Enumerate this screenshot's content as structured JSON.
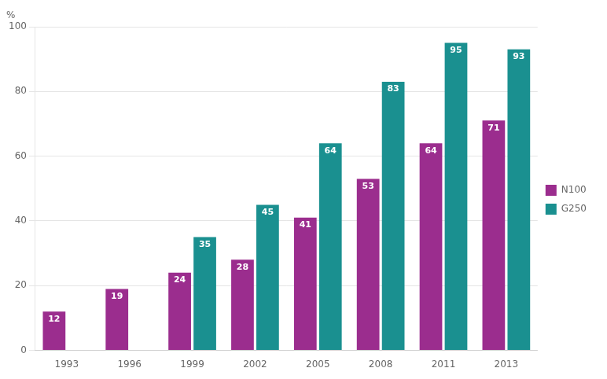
{
  "chart_data": {
    "type": "bar",
    "ylabel": "%",
    "categories": [
      "1993",
      "1996",
      "1999",
      "2002",
      "2005",
      "2008",
      "2011",
      "2013"
    ],
    "series": [
      {
        "name": "N100",
        "color": "#9B2D8E",
        "values": [
          12,
          19,
          24,
          28,
          41,
          53,
          64,
          71
        ]
      },
      {
        "name": "G250",
        "color": "#1A9090",
        "values": [
          null,
          null,
          35,
          45,
          64,
          83,
          95,
          93
        ]
      }
    ],
    "ylim": [
      0,
      100
    ],
    "yticks": [
      0,
      20,
      40,
      60,
      80,
      100
    ],
    "grid": true,
    "legend": "right",
    "data_labels": true
  }
}
